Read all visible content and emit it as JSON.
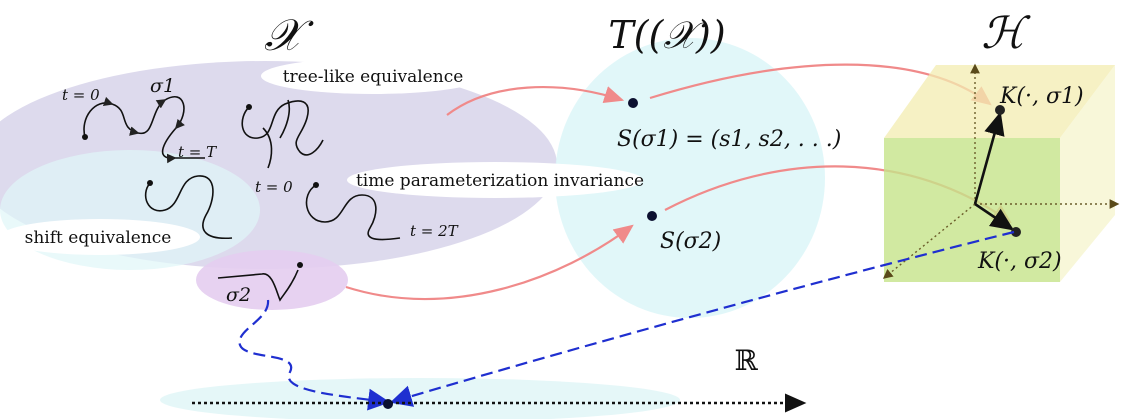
{
  "titles": {
    "x_space": "𝒳",
    "tensor_space": "T((𝒳))",
    "hilbert_space": "ℋ",
    "reals": "ℝ"
  },
  "bubbles": {
    "tree_like": "tree-like equivalence",
    "time_param": "time parameterization invariance",
    "shift": "shift equivalence"
  },
  "path_labels": {
    "t0_a": "t = 0",
    "sigma1": "σ1",
    "tT": "t = T",
    "t0_b": "t = 0",
    "t2T": "t = 2T",
    "sigma2": "σ2"
  },
  "signature_labels": {
    "s_sigma1": "S(σ1) = (s1, s2, . . .)",
    "s_sigma2": "S(σ2)"
  },
  "kernel_labels": {
    "k_sigma1": "K(·, σ1)",
    "k_sigma2": "K(·, σ2)"
  },
  "colors": {
    "x_blob": "#d9d6ea",
    "cyan_blob": "#dff7f8",
    "violet_blob": "#e9d7f0",
    "red_arrow": "#f08a8a",
    "blue_dash": "#1f2fd0",
    "cube_front": "#c9e58e",
    "cube_side": "#f3f0b8"
  }
}
